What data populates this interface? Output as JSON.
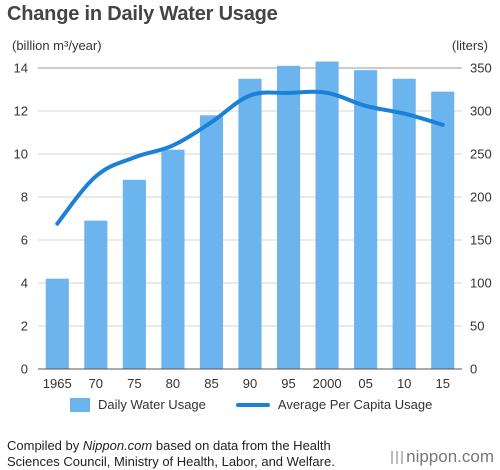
{
  "chart_data": {
    "type": "bar+line",
    "title": "Change in Daily Water Usage",
    "left_axis_label": "(billion m³/year)",
    "right_axis_label": "(liters)",
    "categories": [
      "1965",
      "70",
      "75",
      "80",
      "85",
      "90",
      "95",
      "2000",
      "05",
      "10",
      "15"
    ],
    "left_ticks": [
      "0",
      "2",
      "4",
      "6",
      "8",
      "10",
      "12",
      "14"
    ],
    "right_ticks": [
      "0",
      "50",
      "100",
      "150",
      "200",
      "250",
      "300",
      "350"
    ],
    "ylim_left": [
      0,
      14
    ],
    "ylim_right": [
      0,
      350
    ],
    "grid": true,
    "legend_position": "bottom",
    "series": [
      {
        "name": "Daily Water Usage",
        "type": "bar",
        "axis": "left",
        "color": "#6cb4ee",
        "values": [
          4.2,
          6.9,
          8.8,
          10.2,
          11.8,
          13.5,
          14.1,
          14.3,
          13.9,
          13.5,
          12.9
        ]
      },
      {
        "name": "Average Per Capita Usage",
        "type": "line",
        "axis": "right",
        "color": "#1a80d8",
        "values": [
          169,
          224,
          246,
          260,
          287,
          318,
          321,
          321,
          306,
          297,
          284
        ]
      }
    ]
  },
  "footnote": {
    "prefix": "Compiled by ",
    "source": "Nippon.com",
    "suffix": " based on data from the Health",
    "line2": "Sciences Council, Ministry of Health, Labor, and Welfare."
  },
  "brand": "nippon.com"
}
